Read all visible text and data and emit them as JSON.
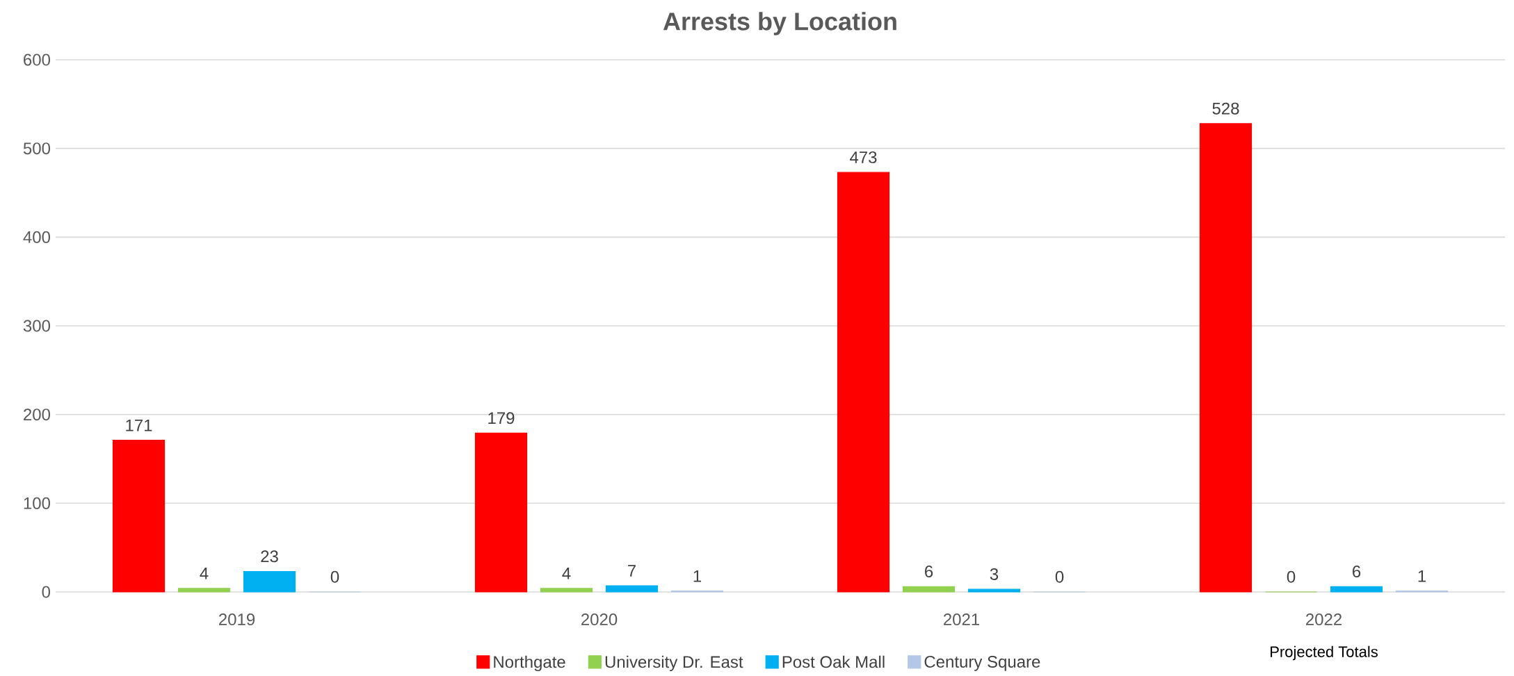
{
  "chart_data": {
    "type": "bar",
    "title": "Arrests by Location",
    "categories": [
      "2019",
      "2020",
      "2021",
      "2022"
    ],
    "series": [
      {
        "name": "Northgate",
        "color": "#ff0000",
        "values": [
          171,
          179,
          473,
          528
        ]
      },
      {
        "name": "University Dr. East",
        "color": "#92d050",
        "values": [
          4,
          4,
          6,
          0
        ]
      },
      {
        "name": "Post Oak Mall",
        "color": "#00b0f0",
        "values": [
          23,
          7,
          3,
          6
        ]
      },
      {
        "name": "Century Square",
        "color": "#b4c7e7",
        "values": [
          0,
          1,
          0,
          1
        ]
      }
    ],
    "ylim": [
      0,
      600
    ],
    "yticks": [
      0,
      100,
      200,
      300,
      400,
      500,
      600
    ],
    "grid": "y",
    "legend": "bottom",
    "data_labels": true,
    "annotations": [
      "Projected Totals"
    ]
  }
}
